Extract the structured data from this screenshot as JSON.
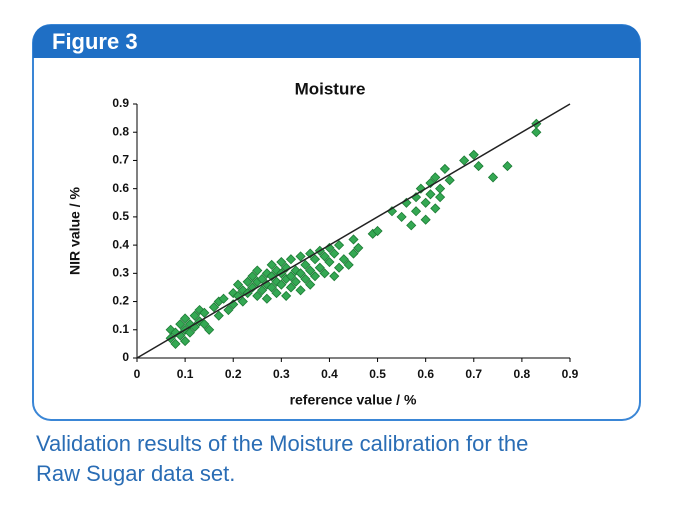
{
  "chart_data": {
    "type": "scatter",
    "figure_label": "Figure 3",
    "title": "Moisture",
    "x_label": "reference value / %",
    "y_label": "NIR value / %",
    "caption_lines": [
      "Validation results of the Moisture calibration for the",
      "Raw Sugar data set."
    ],
    "xlim": [
      0,
      0.9
    ],
    "ylim": [
      0,
      0.9
    ],
    "xticks": [
      0,
      0.1,
      0.2,
      0.3,
      0.4,
      0.5,
      0.6,
      0.7,
      0.8,
      0.9
    ],
    "yticks": [
      0,
      0.1,
      0.2,
      0.3,
      0.4,
      0.5,
      0.6,
      0.7,
      0.8,
      0.9
    ],
    "identity_line": true,
    "grid": false,
    "color": "#34a853",
    "x": [
      0.07,
      0.07,
      0.08,
      0.08,
      0.09,
      0.09,
      0.1,
      0.1,
      0.1,
      0.11,
      0.11,
      0.12,
      0.12,
      0.13,
      0.13,
      0.14,
      0.14,
      0.15,
      0.16,
      0.17,
      0.17,
      0.18,
      0.19,
      0.2,
      0.2,
      0.21,
      0.21,
      0.22,
      0.22,
      0.23,
      0.23,
      0.24,
      0.24,
      0.25,
      0.25,
      0.25,
      0.26,
      0.26,
      0.27,
      0.27,
      0.27,
      0.28,
      0.28,
      0.28,
      0.29,
      0.29,
      0.29,
      0.3,
      0.3,
      0.3,
      0.31,
      0.31,
      0.31,
      0.32,
      0.32,
      0.32,
      0.33,
      0.33,
      0.34,
      0.34,
      0.34,
      0.35,
      0.35,
      0.36,
      0.36,
      0.36,
      0.37,
      0.37,
      0.38,
      0.38,
      0.39,
      0.39,
      0.4,
      0.4,
      0.41,
      0.41,
      0.42,
      0.42,
      0.43,
      0.44,
      0.45,
      0.45,
      0.46,
      0.49,
      0.5,
      0.53,
      0.55,
      0.56,
      0.57,
      0.58,
      0.58,
      0.59,
      0.6,
      0.6,
      0.61,
      0.61,
      0.62,
      0.62,
      0.63,
      0.63,
      0.64,
      0.65,
      0.68,
      0.7,
      0.71,
      0.74,
      0.77,
      0.83,
      0.83
    ],
    "values": [
      0.07,
      0.1,
      0.05,
      0.09,
      0.08,
      0.12,
      0.06,
      0.1,
      0.14,
      0.09,
      0.12,
      0.11,
      0.15,
      0.13,
      0.17,
      0.12,
      0.16,
      0.1,
      0.18,
      0.15,
      0.2,
      0.21,
      0.17,
      0.19,
      0.23,
      0.22,
      0.26,
      0.24,
      0.2,
      0.27,
      0.23,
      0.25,
      0.29,
      0.22,
      0.27,
      0.31,
      0.24,
      0.28,
      0.21,
      0.26,
      0.3,
      0.25,
      0.29,
      0.33,
      0.23,
      0.27,
      0.31,
      0.26,
      0.3,
      0.34,
      0.22,
      0.28,
      0.32,
      0.25,
      0.29,
      0.35,
      0.27,
      0.31,
      0.24,
      0.3,
      0.36,
      0.28,
      0.33,
      0.26,
      0.31,
      0.37,
      0.29,
      0.35,
      0.32,
      0.38,
      0.3,
      0.36,
      0.34,
      0.39,
      0.29,
      0.37,
      0.32,
      0.4,
      0.35,
      0.33,
      0.37,
      0.42,
      0.39,
      0.44,
      0.45,
      0.52,
      0.5,
      0.55,
      0.47,
      0.57,
      0.52,
      0.6,
      0.55,
      0.49,
      0.62,
      0.58,
      0.53,
      0.64,
      0.6,
      0.57,
      0.67,
      0.63,
      0.7,
      0.72,
      0.68,
      0.64,
      0.68,
      0.8,
      0.83
    ]
  }
}
